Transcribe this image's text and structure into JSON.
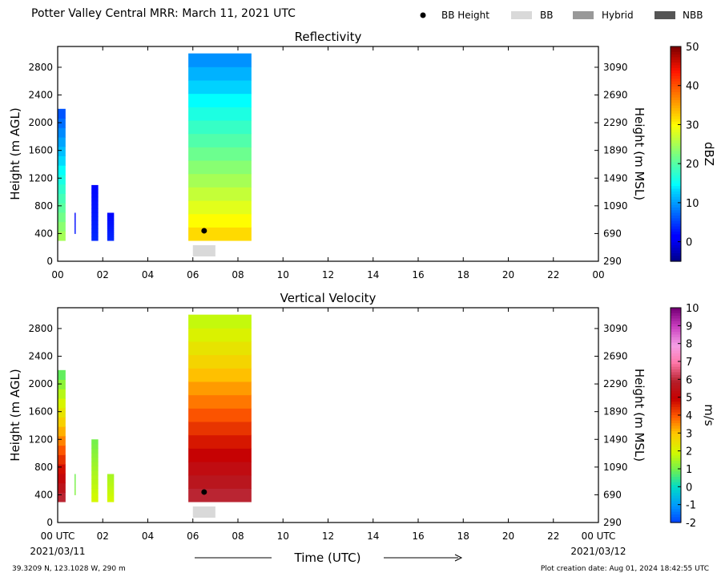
{
  "header": {
    "title": "Potter Valley Central MRR:  March 11, 2021 UTC",
    "legend": [
      {
        "label": "BB Height",
        "kind": "dot",
        "color": "#000000"
      },
      {
        "label": "BB",
        "kind": "bar",
        "color": "#d9d9d9"
      },
      {
        "label": "Hybrid",
        "kind": "bar",
        "color": "#999999"
      },
      {
        "label": "NBB",
        "kind": "bar",
        "color": "#555555"
      }
    ]
  },
  "chart_data": [
    {
      "type": "heatmap",
      "title": "Reflectivity",
      "ylabel": "Height (m AGL)",
      "ylabel_right": "Height (m MSL)",
      "ylim": [
        0,
        3100
      ],
      "xlim": [
        0,
        24
      ],
      "x_tick_labels": [
        "00",
        "02",
        "04",
        "06",
        "08",
        "10",
        "12",
        "14",
        "16",
        "18",
        "20",
        "22",
        "00"
      ],
      "y_ticks_left": [
        0,
        400,
        800,
        1200,
        1600,
        2000,
        2400,
        2800
      ],
      "y_ticks_right": [
        290,
        690,
        1090,
        1490,
        1890,
        2290,
        2690,
        3090
      ],
      "colorbar": {
        "label": "dBZ",
        "min": -5,
        "max": 50,
        "ticks": [
          0,
          10,
          20,
          30,
          40,
          50
        ],
        "colormap": "jet"
      },
      "bright_band_height": {
        "x": 6.5,
        "y": 440
      },
      "bright_band_period": {
        "type": "BB",
        "start": 6.0,
        "end": 7.0
      },
      "precip_regions": [
        {
          "x0": 0.0,
          "x1": 0.35,
          "y0": 300,
          "y1": 2200,
          "value_low": 25,
          "value_high": 5
        },
        {
          "x0": 0.75,
          "x1": 0.8,
          "y0": 400,
          "y1": 700,
          "value_low": 3,
          "value_high": 2
        },
        {
          "x0": 1.5,
          "x1": 1.8,
          "y0": 300,
          "y1": 1100,
          "value_low": 4,
          "value_high": 2
        },
        {
          "x0": 2.2,
          "x1": 2.5,
          "y0": 300,
          "y1": 700,
          "value_low": 4,
          "value_high": 2
        },
        {
          "x0": 5.8,
          "x1": 8.6,
          "y0": 300,
          "y1": 3000,
          "value_low": 32,
          "value_high": 8
        }
      ]
    },
    {
      "type": "heatmap",
      "title": "Vertical Velocity",
      "ylabel": "Height (m AGL)",
      "ylabel_right": "Height (m MSL)",
      "xlabel": "Time (UTC)",
      "ylim": [
        0,
        3100
      ],
      "xlim": [
        0,
        24
      ],
      "x_tick_labels": [
        "00 UTC",
        "02",
        "04",
        "06",
        "08",
        "10",
        "12",
        "14",
        "16",
        "18",
        "20",
        "22",
        "00 UTC"
      ],
      "x_date_labels": [
        "2021/03/11",
        "2021/03/12"
      ],
      "y_ticks_left": [
        0,
        400,
        800,
        1200,
        1600,
        2000,
        2400,
        2800
      ],
      "y_ticks_right": [
        290,
        690,
        1090,
        1490,
        1890,
        2290,
        2690,
        3090
      ],
      "colorbar": {
        "label": "m/s",
        "min": -2,
        "max": 10,
        "ticks": [
          -2,
          -1,
          0,
          1,
          2,
          3,
          4,
          5,
          6,
          7,
          8,
          9,
          10
        ],
        "tick_labels": [
          "-2",
          "-1",
          "0",
          "1",
          "2",
          "3",
          "4",
          "5",
          "6",
          "7",
          "8",
          "9",
          "10"
        ]
      },
      "bright_band_height": {
        "x": 6.5,
        "y": 440
      },
      "bright_band_period": {
        "type": "BB",
        "start": 6.0,
        "end": 7.0
      },
      "precip_regions": [
        {
          "x0": 0.0,
          "x1": 0.35,
          "y0": 300,
          "y1": 2200,
          "value_low": 6,
          "value_high": 0.5
        },
        {
          "x0": 0.75,
          "x1": 0.8,
          "y0": 400,
          "y1": 700,
          "value_low": 1.2,
          "value_high": 1.0
        },
        {
          "x0": 1.5,
          "x1": 1.8,
          "y0": 300,
          "y1": 1200,
          "value_low": 2,
          "value_high": 1
        },
        {
          "x0": 2.2,
          "x1": 2.5,
          "y0": 300,
          "y1": 700,
          "value_low": 2,
          "value_high": 1.5
        },
        {
          "x0": 5.8,
          "x1": 8.6,
          "y0": 300,
          "y1": 3000,
          "value_low": 6,
          "value_high": 1.5
        }
      ]
    }
  ],
  "footer": {
    "location": "39.3209 N, 123.1028 W, 290 m",
    "creation_date": "Plot creation date: Aug 01, 2024 18:42:55 UTC"
  }
}
